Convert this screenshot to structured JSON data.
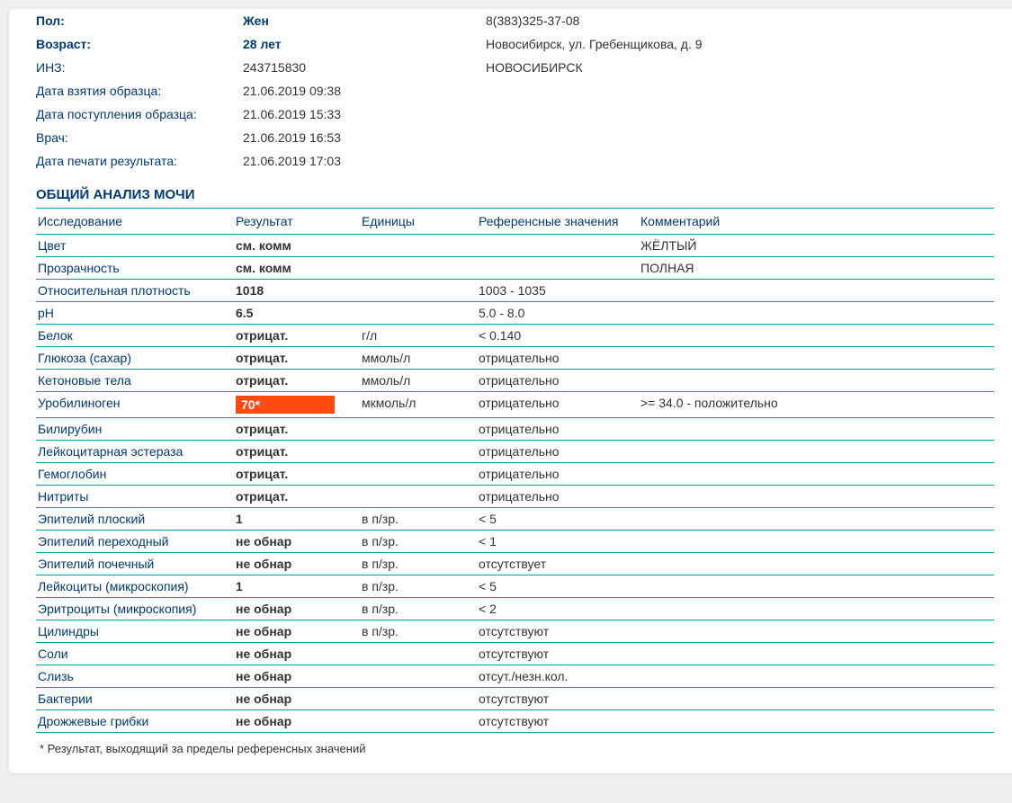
{
  "header": {
    "left": [
      {
        "label": "Пол:",
        "value": "Жен",
        "bold": true
      },
      {
        "label": "Возраст:",
        "value": "28 лет",
        "bold": true
      },
      {
        "label": "ИНЗ:",
        "value": "243715830",
        "bold": false
      },
      {
        "label": "Дата взятия образца:",
        "value": "21.06.2019 09:38",
        "bold": false
      },
      {
        "label": "Дата поступления образца:",
        "value": "21.06.2019 15:33",
        "bold": false
      },
      {
        "label": "Врач:",
        "value": "21.06.2019 16:53",
        "bold": false
      },
      {
        "label": "Дата печати результата:",
        "value": "21.06.2019 17:03",
        "bold": false
      }
    ],
    "right": [
      "8(383)325-37-08",
      "Новосибирск, ул. Гребенщикова, д. 9",
      "НОВОСИБИРСК"
    ]
  },
  "section_title": "ОБЩИЙ АНАЛИЗ МОЧИ",
  "columns": {
    "test": "Исследование",
    "result": "Результат",
    "units": "Единицы",
    "ref": "Референсные значения",
    "comment": "Комментарий"
  },
  "rows": [
    {
      "test": "Цвет",
      "result": "см. комм",
      "units": "",
      "ref": "",
      "comment": "ЖЁЛТЫЙ",
      "hl": false
    },
    {
      "test": "Прозрачность",
      "result": "см. комм",
      "units": "",
      "ref": "",
      "comment": "ПОЛНАЯ",
      "hl": false
    },
    {
      "test": "Относительная плотность",
      "result": "1018",
      "units": "",
      "ref": "1003 - 1035",
      "comment": "",
      "hl": false
    },
    {
      "test": "pH",
      "result": "6.5",
      "units": "",
      "ref": "5.0 - 8.0",
      "comment": "",
      "hl": false
    },
    {
      "test": "Белок",
      "result": "отрицат.",
      "units": "г/л",
      "ref": "< 0.140",
      "comment": "",
      "hl": false
    },
    {
      "test": "Глюкоза (сахар)",
      "result": "отрицат.",
      "units": "ммоль/л",
      "ref": "отрицательно",
      "comment": "",
      "hl": false
    },
    {
      "test": "Кетоновые тела",
      "result": "отрицат.",
      "units": "ммоль/л",
      "ref": "отрицательно",
      "comment": "",
      "hl": false
    },
    {
      "test": "Уробилиноген",
      "result": "70*",
      "units": "мкмоль/л",
      "ref": "отрицательно",
      "comment": ">= 34.0 - положительно",
      "hl": true
    },
    {
      "test": "Билирубин",
      "result": "отрицат.",
      "units": "",
      "ref": "отрицательно",
      "comment": "",
      "hl": false
    },
    {
      "test": "Лейкоцитарная эстераза",
      "result": "отрицат.",
      "units": "",
      "ref": "отрицательно",
      "comment": "",
      "hl": false
    },
    {
      "test": "Гемоглобин",
      "result": "отрицат.",
      "units": "",
      "ref": "отрицательно",
      "comment": "",
      "hl": false
    },
    {
      "test": "Нитриты",
      "result": "отрицат.",
      "units": "",
      "ref": "отрицательно",
      "comment": "",
      "hl": false
    },
    {
      "test": "Эпителий плоский",
      "result": "1",
      "units": "в п/зр.",
      "ref": "< 5",
      "comment": "",
      "hl": false
    },
    {
      "test": "Эпителий переходный",
      "result": "не обнар",
      "units": "в п/зр.",
      "ref": "< 1",
      "comment": "",
      "hl": false
    },
    {
      "test": "Эпителий почечный",
      "result": "не обнар",
      "units": "в п/зр.",
      "ref": "отсутствует",
      "comment": "",
      "hl": false
    },
    {
      "test": "Лейкоциты (микроскопия)",
      "result": "1",
      "units": "в п/зр.",
      "ref": "< 5",
      "comment": "",
      "hl": false
    },
    {
      "test": "Эритроциты (микроскопия)",
      "result": "не обнар",
      "units": "в п/зр.",
      "ref": "< 2",
      "comment": "",
      "hl": false
    },
    {
      "test": "Цилиндры",
      "result": "не обнар",
      "units": "в п/зр.",
      "ref": "отсутствуют",
      "comment": "",
      "hl": false
    },
    {
      "test": "Соли",
      "result": "не обнар",
      "units": "",
      "ref": "отсутствуют",
      "comment": "",
      "hl": false
    },
    {
      "test": "Слизь",
      "result": "не обнар",
      "units": "",
      "ref": "отсут./незн.кол.",
      "comment": "",
      "hl": false
    },
    {
      "test": "Бактерии",
      "result": "не обнар",
      "units": "",
      "ref": "отсутствуют",
      "comment": "",
      "hl": false
    },
    {
      "test": "Дрожжевые грибки",
      "result": "не обнар",
      "units": "",
      "ref": "отсутствуют",
      "comment": "",
      "hl": false
    }
  ],
  "footnote": "* Результат, выходящий за пределы референсных значений",
  "colors": {
    "accent": "#003a75",
    "border": "#009b9b",
    "highlight_bg": "#ff4a12",
    "highlight_fg": "#ffffff"
  }
}
